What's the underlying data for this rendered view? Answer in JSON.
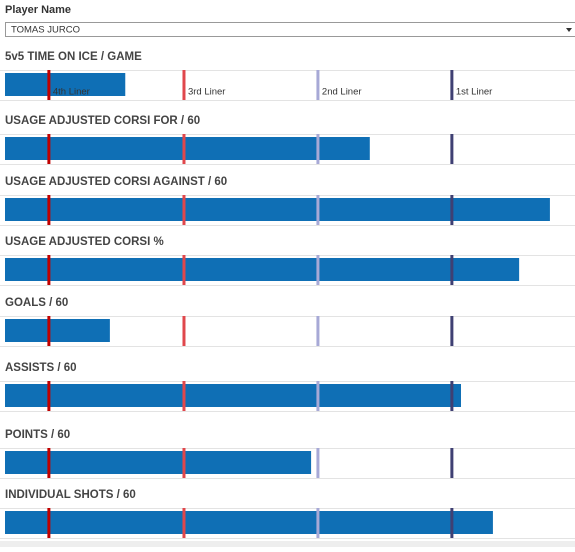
{
  "filter": {
    "label": "Player Name",
    "value": "TOMAS JURCO"
  },
  "chart_data": [
    {
      "type": "bar",
      "title": "5v5 TIME ON ICE / GAME",
      "values": [
        21.1
      ],
      "color": "#0f6fb5",
      "xlim": [
        0,
        100
      ],
      "reference_lines": [
        {
          "value": 7.7,
          "label": "4th Liner",
          "color": "#c00000"
        },
        {
          "value": 31.4,
          "label": "3rd Liner",
          "color": "#e0474c"
        },
        {
          "value": 54.9,
          "label": "2nd Liner",
          "color": "#a7a9d6"
        },
        {
          "value": 78.4,
          "label": "1st Liner",
          "color": "#3f4073"
        }
      ]
    },
    {
      "type": "bar",
      "title": "USAGE ADJUSTED CORSI FOR / 60",
      "values": [
        64.0
      ],
      "color": "#0f6fb5",
      "xlim": [
        0,
        100
      ],
      "reference_lines": [
        {
          "value": 7.7,
          "color": "#c00000"
        },
        {
          "value": 31.4,
          "color": "#e0474c"
        },
        {
          "value": 54.9,
          "color": "#a7a9d6"
        },
        {
          "value": 78.4,
          "color": "#3f4073"
        }
      ]
    },
    {
      "type": "bar",
      "title": "USAGE ADJUSTED CORSI AGAINST / 60",
      "values": [
        95.6
      ],
      "color": "#0f6fb5",
      "xlim": [
        0,
        100
      ],
      "reference_lines": [
        {
          "value": 7.7,
          "color": "#c00000"
        },
        {
          "value": 31.4,
          "color": "#e0474c"
        },
        {
          "value": 54.9,
          "color": "#a7a9d6"
        },
        {
          "value": 78.4,
          "color": "#3f4073"
        }
      ]
    },
    {
      "type": "bar",
      "title": "USAGE ADJUSTED CORSI %",
      "values": [
        90.2
      ],
      "color": "#0f6fb5",
      "xlim": [
        0,
        100
      ],
      "reference_lines": [
        {
          "value": 7.7,
          "color": "#c00000"
        },
        {
          "value": 31.4,
          "color": "#e0474c"
        },
        {
          "value": 54.9,
          "color": "#a7a9d6"
        },
        {
          "value": 78.4,
          "color": "#3f4073"
        }
      ]
    },
    {
      "type": "bar",
      "title": "GOALS / 60",
      "values": [
        18.4
      ],
      "color": "#0f6fb5",
      "xlim": [
        0,
        100
      ],
      "reference_lines": [
        {
          "value": 7.7,
          "color": "#c00000"
        },
        {
          "value": 31.4,
          "color": "#e0474c"
        },
        {
          "value": 54.9,
          "color": "#a7a9d6"
        },
        {
          "value": 78.4,
          "color": "#3f4073"
        }
      ]
    },
    {
      "type": "bar",
      "title": "ASSISTS / 60",
      "values": [
        80.0
      ],
      "color": "#0f6fb5",
      "xlim": [
        0,
        100
      ],
      "reference_lines": [
        {
          "value": 7.7,
          "color": "#c00000"
        },
        {
          "value": 31.4,
          "color": "#e0474c"
        },
        {
          "value": 54.9,
          "color": "#a7a9d6"
        },
        {
          "value": 78.4,
          "color": "#3f4073"
        }
      ]
    },
    {
      "type": "bar",
      "title": "POINTS / 60",
      "values": [
        53.7
      ],
      "color": "#0f6fb5",
      "xlim": [
        0,
        100
      ],
      "reference_lines": [
        {
          "value": 7.7,
          "color": "#c00000"
        },
        {
          "value": 31.4,
          "color": "#e0474c"
        },
        {
          "value": 54.9,
          "color": "#a7a9d6"
        },
        {
          "value": 78.4,
          "color": "#3f4073"
        }
      ]
    },
    {
      "type": "bar",
      "title": "INDIVIDUAL SHOTS / 60",
      "values": [
        85.6
      ],
      "color": "#0f6fb5",
      "xlim": [
        0,
        100
      ],
      "reference_lines": [
        {
          "value": 7.7,
          "color": "#c00000"
        },
        {
          "value": 31.4,
          "color": "#e0474c"
        },
        {
          "value": 54.9,
          "color": "#a7a9d6"
        },
        {
          "value": 78.4,
          "color": "#3f4073"
        }
      ]
    }
  ]
}
